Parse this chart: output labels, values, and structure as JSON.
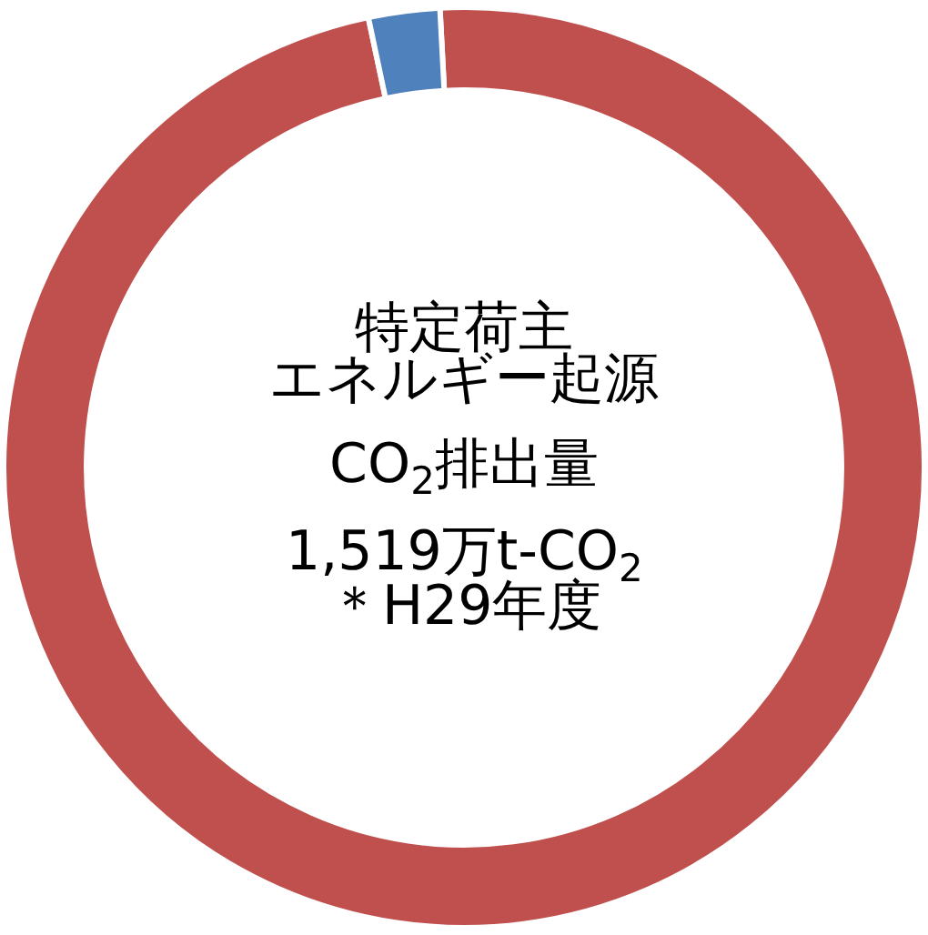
{
  "chart_data": {
    "type": "donut",
    "categories": [
      null,
      null
    ],
    "values": [
      97.5,
      2.5
    ],
    "colors": [
      "#c0504d",
      "#4f81bd"
    ],
    "legend": false,
    "annotations": [
      "特定荷主",
      "エネルギー起源",
      "CO$_{2}$排出量",
      "1,519万t-CO$_{2}$",
      "＊H29年度"
    ]
  }
}
